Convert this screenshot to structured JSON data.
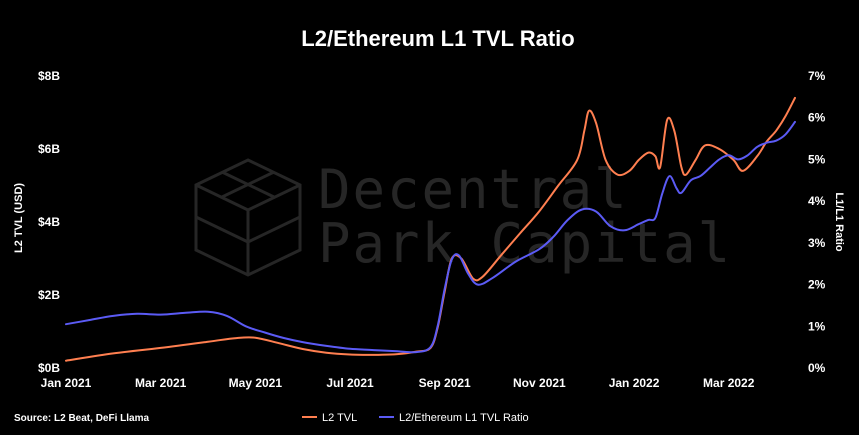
{
  "chart_data": {
    "type": "line",
    "title": "L2/Ethereum L1 TVL Ratio",
    "ylabel_left": "L2 TVL (USD)",
    "ylabel_right": "L1/L1 Ratio",
    "source": "Source: L2 Beat, DeFi Llama",
    "watermark": [
      "Decentral",
      "Park Capital"
    ],
    "x_ticks": [
      "Jan 2021",
      "Mar 2021",
      "May 2021",
      "Jul 2021",
      "Sep 2021",
      "Nov 2021",
      "Jan 2022",
      "Mar 2022"
    ],
    "y_left_ticks": [
      "$0B",
      "$2B",
      "$4B",
      "$6B",
      "$8B"
    ],
    "y_right_ticks": [
      "0%",
      "1%",
      "2%",
      "3%",
      "4%",
      "5%",
      "6%",
      "7%"
    ],
    "y_left_range": [
      0,
      8
    ],
    "y_right_range": [
      0,
      7
    ],
    "x_range": [
      0,
      15.4
    ],
    "legend_position": "bottom",
    "grid": false,
    "series": [
      {
        "name": "L2 TVL",
        "axis": "left",
        "color": "#ff7f50",
        "points": [
          [
            0.0,
            0.2
          ],
          [
            1.0,
            0.4
          ],
          [
            2.0,
            0.55
          ],
          [
            3.0,
            0.72
          ],
          [
            3.6,
            0.82
          ],
          [
            4.0,
            0.83
          ],
          [
            4.5,
            0.68
          ],
          [
            5.0,
            0.52
          ],
          [
            5.5,
            0.42
          ],
          [
            6.0,
            0.37
          ],
          [
            6.5,
            0.36
          ],
          [
            7.0,
            0.38
          ],
          [
            7.4,
            0.45
          ],
          [
            7.7,
            0.55
          ],
          [
            7.85,
            1.1
          ],
          [
            8.0,
            2.1
          ],
          [
            8.15,
            3.0
          ],
          [
            8.35,
            3.0
          ],
          [
            8.6,
            2.45
          ],
          [
            8.8,
            2.5
          ],
          [
            9.2,
            3.1
          ],
          [
            9.6,
            3.7
          ],
          [
            10.0,
            4.3
          ],
          [
            10.4,
            5.0
          ],
          [
            10.8,
            5.7
          ],
          [
            10.95,
            6.5
          ],
          [
            11.05,
            7.05
          ],
          [
            11.2,
            6.7
          ],
          [
            11.4,
            5.7
          ],
          [
            11.65,
            5.3
          ],
          [
            11.9,
            5.4
          ],
          [
            12.1,
            5.7
          ],
          [
            12.3,
            5.9
          ],
          [
            12.45,
            5.8
          ],
          [
            12.55,
            5.5
          ],
          [
            12.7,
            6.8
          ],
          [
            12.85,
            6.5
          ],
          [
            13.0,
            5.5
          ],
          [
            13.1,
            5.3
          ],
          [
            13.3,
            5.7
          ],
          [
            13.5,
            6.1
          ],
          [
            13.8,
            6.0
          ],
          [
            14.1,
            5.7
          ],
          [
            14.3,
            5.4
          ],
          [
            14.6,
            5.8
          ],
          [
            14.8,
            6.2
          ],
          [
            15.0,
            6.5
          ],
          [
            15.2,
            6.9
          ],
          [
            15.4,
            7.4
          ]
        ]
      },
      {
        "name": "L2/Ethereum L1 TVL Ratio",
        "axis": "right",
        "color": "#5b5bf5",
        "points": [
          [
            0.0,
            1.05
          ],
          [
            0.5,
            1.15
          ],
          [
            1.0,
            1.25
          ],
          [
            1.5,
            1.3
          ],
          [
            2.0,
            1.28
          ],
          [
            2.5,
            1.32
          ],
          [
            3.0,
            1.35
          ],
          [
            3.4,
            1.25
          ],
          [
            3.8,
            1.0
          ],
          [
            4.2,
            0.85
          ],
          [
            4.6,
            0.72
          ],
          [
            5.0,
            0.62
          ],
          [
            5.5,
            0.53
          ],
          [
            6.0,
            0.46
          ],
          [
            6.5,
            0.43
          ],
          [
            7.0,
            0.4
          ],
          [
            7.4,
            0.38
          ],
          [
            7.7,
            0.5
          ],
          [
            7.85,
            1.0
          ],
          [
            8.0,
            1.9
          ],
          [
            8.15,
            2.6
          ],
          [
            8.3,
            2.7
          ],
          [
            8.5,
            2.25
          ],
          [
            8.7,
            2.0
          ],
          [
            9.0,
            2.15
          ],
          [
            9.5,
            2.55
          ],
          [
            10.0,
            2.85
          ],
          [
            10.3,
            3.15
          ],
          [
            10.6,
            3.55
          ],
          [
            10.9,
            3.8
          ],
          [
            11.2,
            3.75
          ],
          [
            11.5,
            3.4
          ],
          [
            11.8,
            3.3
          ],
          [
            12.1,
            3.45
          ],
          [
            12.3,
            3.55
          ],
          [
            12.45,
            3.6
          ],
          [
            12.6,
            4.2
          ],
          [
            12.75,
            4.6
          ],
          [
            12.9,
            4.3
          ],
          [
            13.0,
            4.2
          ],
          [
            13.2,
            4.5
          ],
          [
            13.4,
            4.6
          ],
          [
            13.6,
            4.8
          ],
          [
            13.8,
            5.0
          ],
          [
            14.0,
            5.1
          ],
          [
            14.2,
            5.0
          ],
          [
            14.4,
            5.1
          ],
          [
            14.6,
            5.3
          ],
          [
            14.8,
            5.4
          ],
          [
            15.0,
            5.45
          ],
          [
            15.2,
            5.6
          ],
          [
            15.4,
            5.9
          ]
        ]
      }
    ]
  }
}
